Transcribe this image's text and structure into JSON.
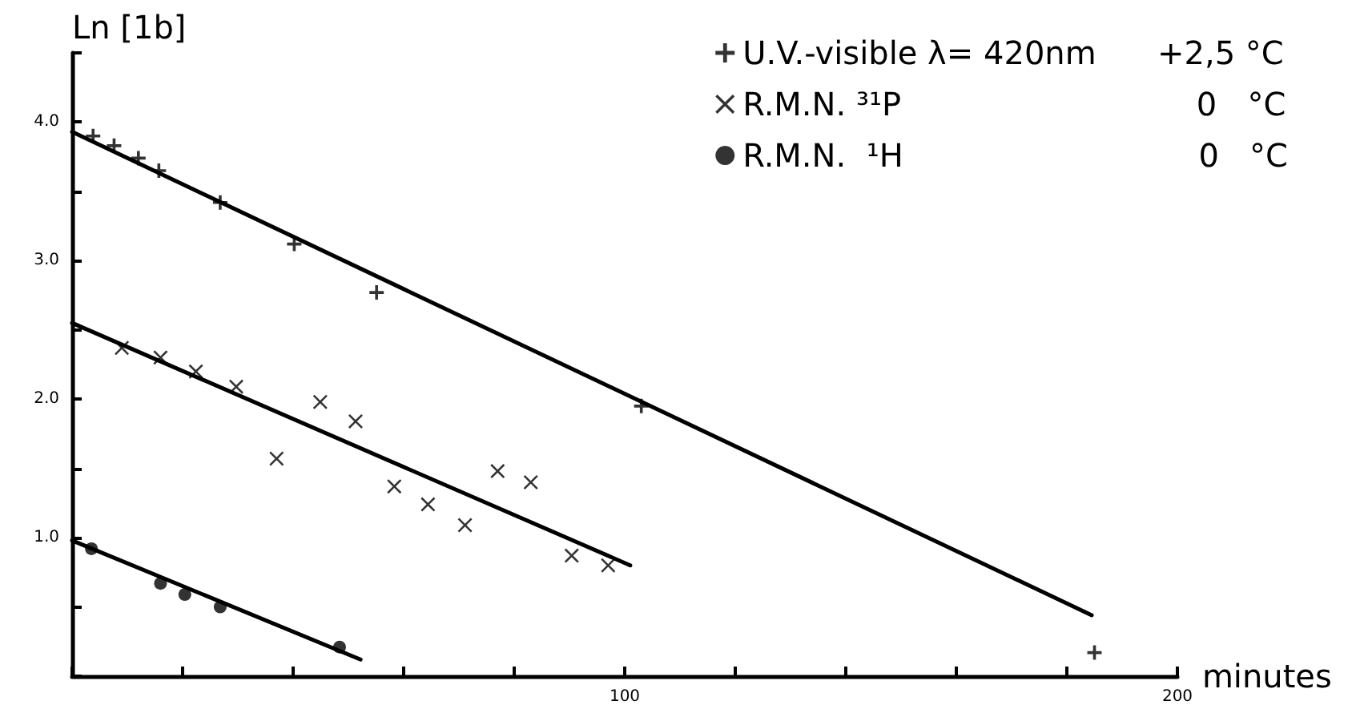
{
  "chart_data": {
    "type": "scatter",
    "xlabel": "minutes",
    "ylabel": "Ln [1b]",
    "xlim": [
      0,
      200
    ],
    "ylim": [
      0,
      4.5
    ],
    "xticks": [
      {
        "value": 0,
        "label": null
      },
      {
        "value": 20,
        "label": null
      },
      {
        "value": 40,
        "label": null
      },
      {
        "value": 60,
        "label": null
      },
      {
        "value": 80,
        "label": null
      },
      {
        "value": 100,
        "label": "100"
      },
      {
        "value": 120,
        "label": null
      },
      {
        "value": 140,
        "label": null
      },
      {
        "value": 160,
        "label": null
      },
      {
        "value": 180,
        "label": null
      },
      {
        "value": 200,
        "label": "200"
      }
    ],
    "yticks": [
      {
        "value": 0,
        "label": null
      },
      {
        "value": 0.5,
        "label": null
      },
      {
        "value": 1,
        "label": "1.0"
      },
      {
        "value": 1.5,
        "label": null
      },
      {
        "value": 2,
        "label": "2.0"
      },
      {
        "value": 2.5,
        "label": null
      },
      {
        "value": 3,
        "label": "3.0"
      },
      {
        "value": 3.5,
        "label": null
      },
      {
        "value": 4,
        "label": "4.0"
      },
      {
        "value": 4.5,
        "label": null
      }
    ],
    "grid": false,
    "legend": "top right",
    "series": [
      {
        "name": "U.V.-visible λ= 420nm      +2,5 °C",
        "marker": "cross",
        "color": "#000000",
        "x": [
          3.8,
          7.6,
          12,
          15.7,
          26.8,
          40.2,
          55.1,
          103,
          185
        ],
        "values": [
          3.9,
          3.83,
          3.74,
          3.65,
          3.42,
          3.12,
          2.77,
          1.95,
          0.17
        ]
      },
      {
        "name": "R.M.N. ³¹P                             0   °C",
        "marker": "x",
        "color": "#000000",
        "x": [
          9,
          16,
          22.4,
          29.7,
          37,
          44.9,
          51.3,
          58.3,
          64.4,
          71.1,
          77,
          83,
          90.4,
          97
        ],
        "values": [
          2.37,
          2.3,
          2.2,
          2.09,
          1.57,
          1.98,
          1.84,
          1.37,
          1.24,
          1.09,
          1.48,
          1.4,
          0.87,
          0.8
        ]
      },
      {
        "name": "R.M.N.  ¹H                             0   °C",
        "marker": "circle",
        "color": "#000000",
        "x": [
          3.5,
          16,
          20.4,
          26.8,
          48.4
        ],
        "values": [
          0.92,
          0.67,
          0.59,
          0.5,
          0.21
        ]
      },
      {
        "type": "line",
        "marker": "none",
        "line_style": "solid",
        "color": "#000000",
        "x": [
          0,
          184.5
        ],
        "values": [
          3.93,
          0.44
        ]
      },
      {
        "type": "line",
        "marker": "none",
        "line_style": "solid",
        "color": "#000000",
        "x": [
          0,
          101
        ],
        "values": [
          2.55,
          0.8
        ]
      },
      {
        "type": "line",
        "marker": "none",
        "line_style": "solid",
        "color": "#000000",
        "x": [
          0,
          52.2
        ],
        "values": [
          0.98,
          0.12
        ]
      }
    ]
  }
}
